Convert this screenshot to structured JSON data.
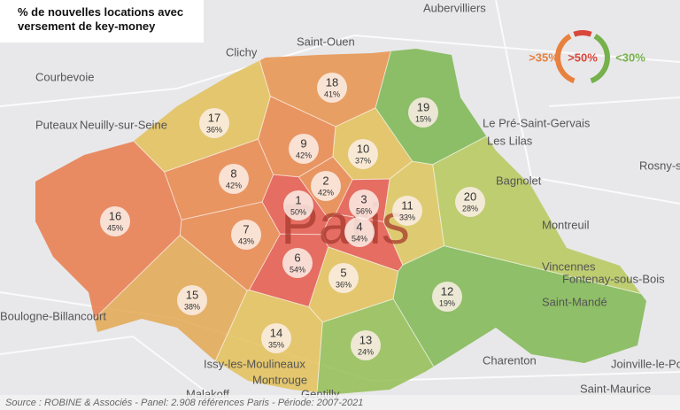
{
  "title": "% de nouvelles locations avec versement de key-money",
  "legend": [
    {
      "label": ">35%",
      "color": "#e8803e"
    },
    {
      "label": ">50%",
      "color": "#d9463a"
    },
    {
      "label": "<30%",
      "color": "#76b14b"
    }
  ],
  "map_label": "Paris",
  "places": [
    "Aubervilliers",
    "Saint-Ouen",
    "Clichy",
    "Courbevoie",
    "Puteaux",
    "Neuilly-sur-Seine",
    "Le Pré-Saint-Gervais",
    "Les Lilas",
    "Bagnolet",
    "Montreuil",
    "Vincennes",
    "Fontenay-sous-Bois",
    "Saint-Mandé",
    "Boulogne-Billancourt",
    "Issy-les-Moulineaux",
    "Montrouge",
    "Charenton",
    "Saint-Maurice",
    "Joinville-le-Pont",
    "Rosny-s",
    "Malakoff",
    "Gentilly"
  ],
  "districts": [
    {
      "number": "1",
      "share": "50%",
      "color": "#e4574a"
    },
    {
      "number": "2",
      "share": "42%",
      "color": "#e8864a"
    },
    {
      "number": "3",
      "share": "56%",
      "color": "#e4574a"
    },
    {
      "number": "4",
      "share": "54%",
      "color": "#e4574a"
    },
    {
      "number": "5",
      "share": "36%",
      "color": "#e2c058"
    },
    {
      "number": "6",
      "share": "54%",
      "color": "#e4574a"
    },
    {
      "number": "7",
      "share": "43%",
      "color": "#e8864a"
    },
    {
      "number": "8",
      "share": "42%",
      "color": "#e8864a"
    },
    {
      "number": "9",
      "share": "42%",
      "color": "#e8864a"
    },
    {
      "number": "10",
      "share": "37%",
      "color": "#e2c058"
    },
    {
      "number": "11",
      "share": "33%",
      "color": "#dcc65c"
    },
    {
      "number": "12",
      "share": "19%",
      "color": "#7fb751"
    },
    {
      "number": "13",
      "share": "24%",
      "color": "#93bd53"
    },
    {
      "number": "14",
      "share": "35%",
      "color": "#e2c058"
    },
    {
      "number": "15",
      "share": "38%",
      "color": "#e3a752"
    },
    {
      "number": "16",
      "share": "45%",
      "color": "#e77a4b"
    },
    {
      "number": "17",
      "share": "36%",
      "color": "#e2c058"
    },
    {
      "number": "18",
      "share": "41%",
      "color": "#e8924b"
    },
    {
      "number": "19",
      "share": "15%",
      "color": "#7ab650"
    },
    {
      "number": "20",
      "share": "28%",
      "color": "#b6c85a"
    }
  ],
  "source": "Source : ROBINE & Associés - Panel: 2.908 références Paris - Période: 2007-2021"
}
